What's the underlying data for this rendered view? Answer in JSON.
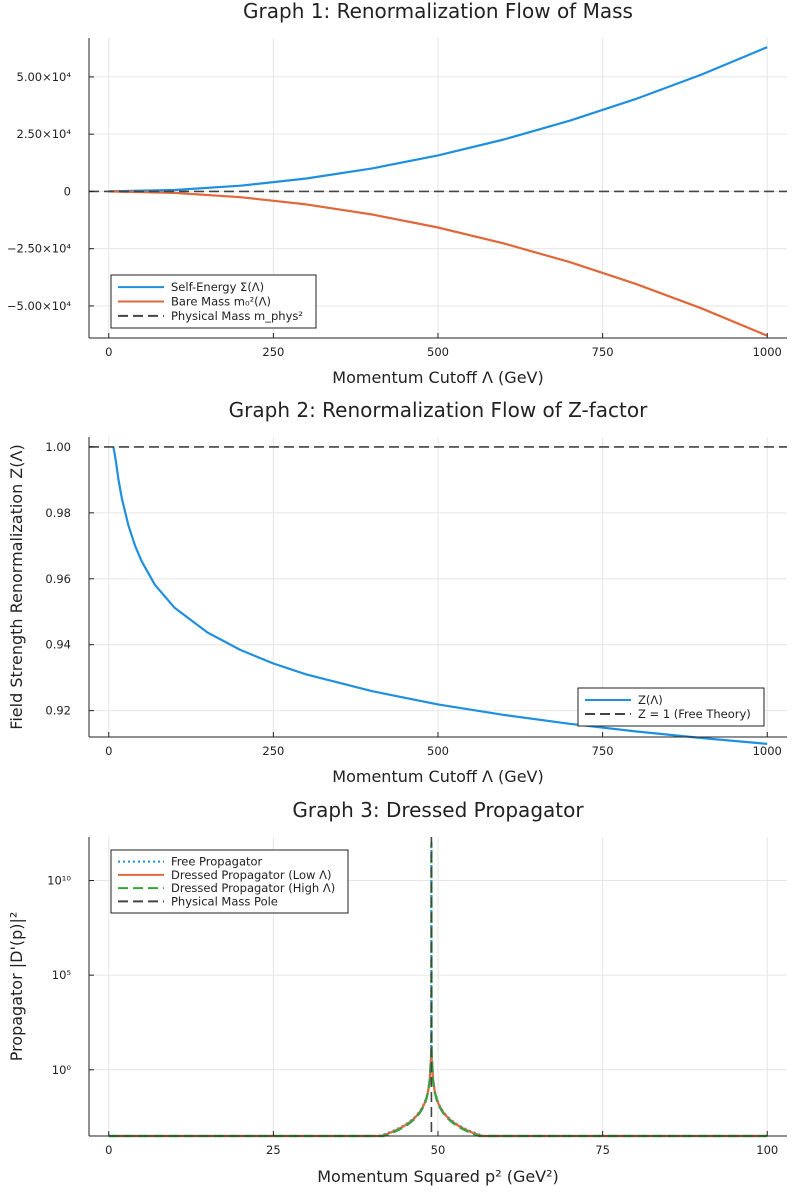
{
  "colors": {
    "blue": "#1f8fe0",
    "orange": "#e0683a",
    "green": "#3aa040",
    "black": "#444444"
  },
  "chart_data": [
    {
      "type": "line",
      "title": "Graph 1: Renormalization Flow of Mass",
      "xlabel": "Momentum Cutoff Λ (GeV)",
      "ylabel": "",
      "xlim": [
        -30,
        1030
      ],
      "ylim": [
        -64000,
        67000
      ],
      "xticks": [
        0,
        250,
        500,
        750,
        1000
      ],
      "xtick_labels": [
        "0",
        "250",
        "500",
        "750",
        "1000"
      ],
      "yticks": [
        50000,
        25000,
        0,
        -25000,
        -50000
      ],
      "ytick_labels": [
        "5.00×10⁴",
        "2.50×10⁴",
        "0",
        "−2.50×10⁴",
        "−5.00×10⁴"
      ],
      "grid": true,
      "legend": "bottom-left",
      "series": [
        {
          "name": "Self-Energy Σ(Λ)",
          "color": "#1f8fe0",
          "style": "solid",
          "x": [
            0,
            100,
            200,
            300,
            400,
            500,
            600,
            700,
            800,
            900,
            1000
          ],
          "y": [
            0,
            630,
            2520,
            5670,
            10080,
            15750,
            22680,
            30870,
            40320,
            51030,
            63000
          ]
        },
        {
          "name": "Bare Mass m₀²(Λ)",
          "color": "#e0683a",
          "style": "solid",
          "x": [
            0,
            100,
            200,
            300,
            400,
            500,
            600,
            700,
            800,
            900,
            1000
          ],
          "y": [
            0,
            -630,
            -2520,
            -5670,
            -10080,
            -15750,
            -22680,
            -30870,
            -40320,
            -51030,
            -63000
          ]
        },
        {
          "name": "Physical Mass m_phys²",
          "color": "#444444",
          "style": "dashed",
          "hline": 0
        }
      ]
    },
    {
      "type": "line",
      "title": "Graph 2: Renormalization Flow of Z-factor",
      "xlabel": "Momentum Cutoff Λ (GeV)",
      "ylabel": "Field Strength Renormalization Z(Λ)",
      "xlim": [
        -30,
        1030
      ],
      "ylim": [
        0.912,
        1.003
      ],
      "xticks": [
        0,
        250,
        500,
        750,
        1000
      ],
      "xtick_labels": [
        "0",
        "250",
        "500",
        "750",
        "1000"
      ],
      "yticks": [
        1.0,
        0.98,
        0.96,
        0.94,
        0.92
      ],
      "ytick_labels": [
        "1.00",
        "0.98",
        "0.96",
        "0.94",
        "0.92"
      ],
      "grid": true,
      "legend": "bottom-right",
      "series": [
        {
          "name": "Z(Λ)",
          "color": "#1f8fe0",
          "style": "solid",
          "x": [
            7,
            10,
            15,
            20,
            30,
            40,
            50,
            70,
            100,
            150,
            200,
            250,
            300,
            400,
            500,
            600,
            700,
            800,
            900,
            1000
          ],
          "y": [
            1.0,
            0.9968,
            0.9898,
            0.9843,
            0.9761,
            0.97,
            0.9653,
            0.9582,
            0.9512,
            0.9437,
            0.9384,
            0.9343,
            0.931,
            0.9259,
            0.9219,
            0.9187,
            0.916,
            0.9137,
            0.9117,
            0.9099
          ]
        },
        {
          "name": "Z = 1 (Free Theory)",
          "color": "#444444",
          "style": "dashed",
          "hline": 1.0
        }
      ]
    },
    {
      "type": "line",
      "title": "Graph 3: Dressed Propagator",
      "xlabel": "Momentum Squared p² (GeV²)",
      "ylabel": "Propagator |D'(p)|²",
      "xlim": [
        -3,
        103
      ],
      "yscale": "log",
      "ylim_log10": [
        -3.5,
        12.3
      ],
      "xticks": [
        0,
        25,
        50,
        75,
        100
      ],
      "xtick_labels": [
        "0",
        "25",
        "50",
        "75",
        "100"
      ],
      "yticks_log10": [
        10,
        5,
        0
      ],
      "ytick_labels": [
        "10¹⁰",
        "10⁵",
        "10⁰"
      ],
      "grid": true,
      "legend": "top-left",
      "series": [
        {
          "name": "Free Propagator",
          "color": "#1f8fe0",
          "style": "dotted",
          "pole": 49,
          "scale": 1.0,
          "peak_log10": 11.8
        },
        {
          "name": "Dressed Propagator (Low Λ)",
          "color": "#e0683a",
          "style": "solid",
          "pole": 49,
          "scale": 0.96,
          "peak_log10": 1.3
        },
        {
          "name": "Dressed Propagator (High Λ)",
          "color": "#3aa040",
          "style": "dashed",
          "pole": 49,
          "scale": 0.91,
          "peak_log10": 12.0
        },
        {
          "name": "Physical Mass Pole",
          "color": "#444444",
          "style": "dashed",
          "vline": 49
        }
      ]
    }
  ]
}
